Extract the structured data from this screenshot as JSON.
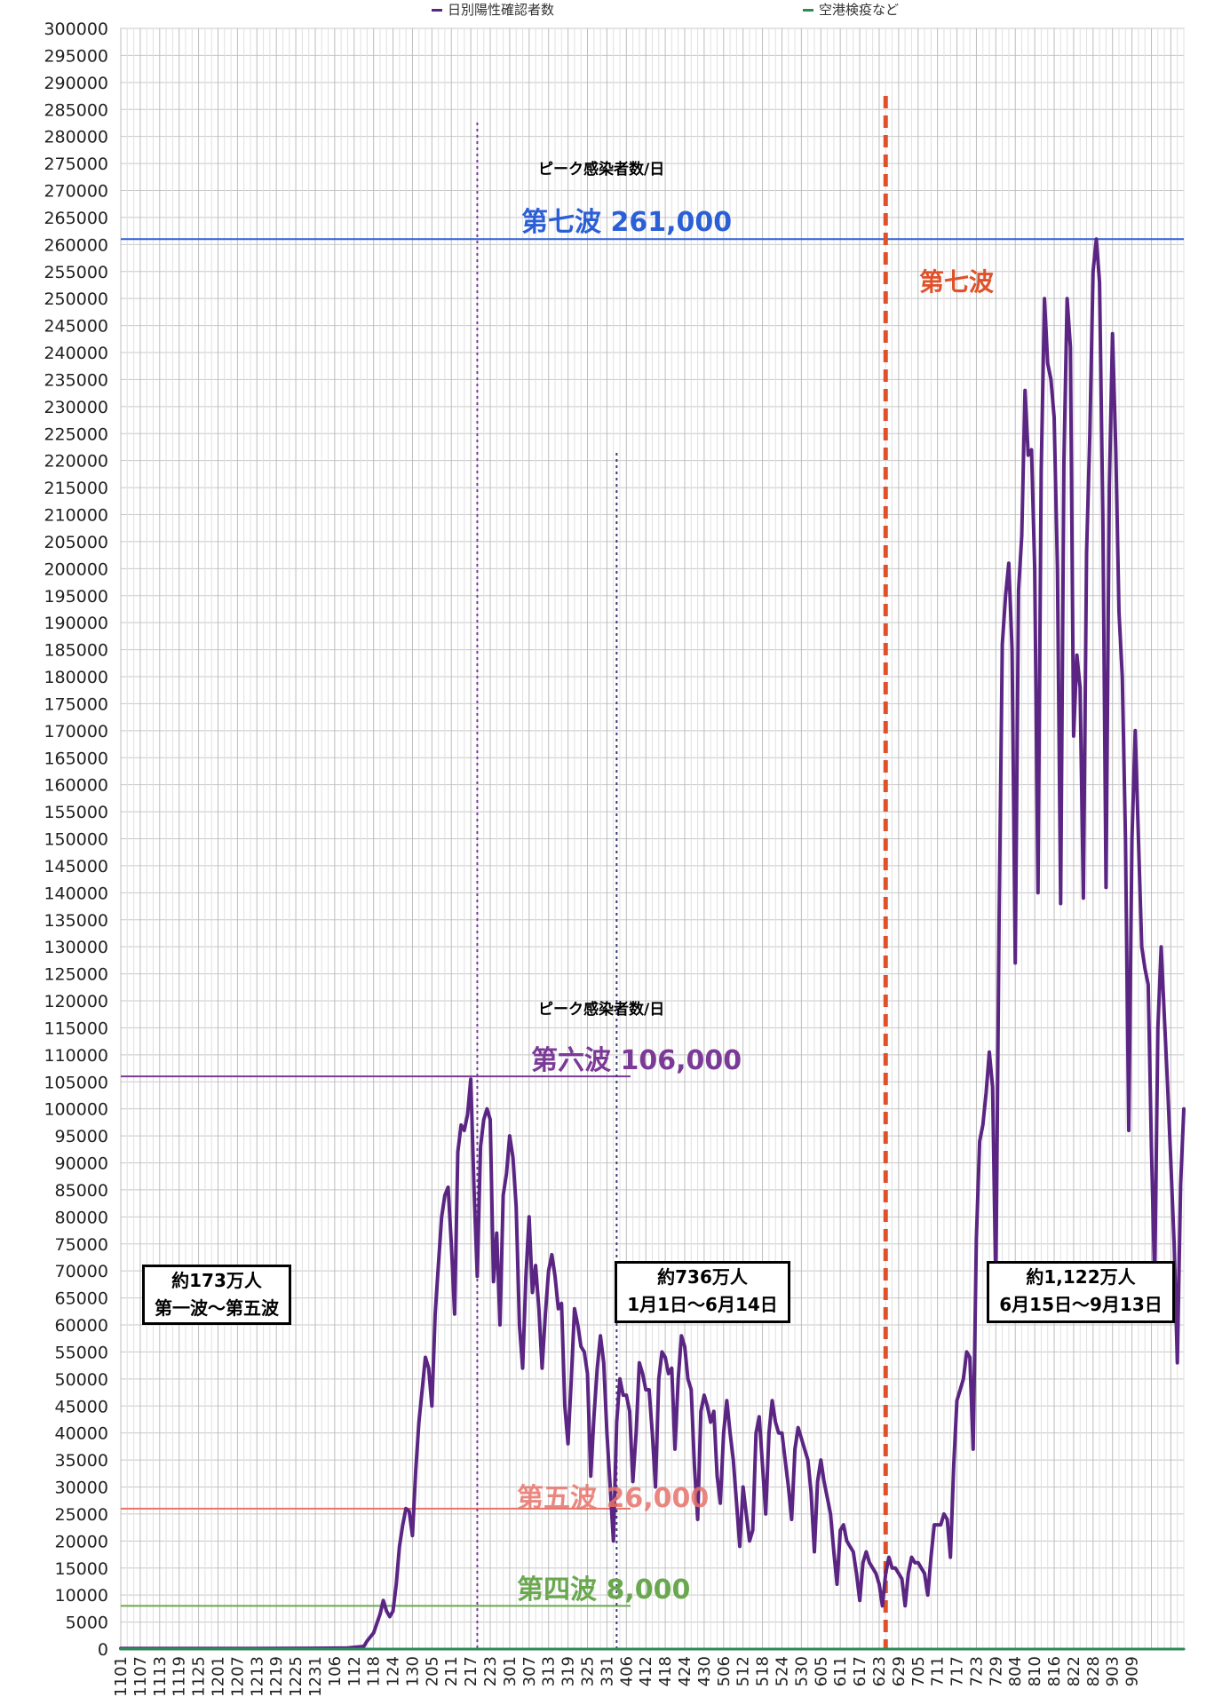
{
  "legend": [
    {
      "name": "日別陽性確認者数",
      "color": "#5b2583"
    },
    {
      "name": "空港検疫など",
      "color": "#2e8b57"
    }
  ],
  "annotations": {
    "peak_title_7": "ピーク感染者数/日",
    "peak_title_6": "ピーク感染者数/日",
    "wave7_peak": "第七波 261,000",
    "wave7_label": "第七波",
    "wave6_peak": "第六波 106,000",
    "wave5_peak": "第五波 26,000",
    "wave4_peak": "第四波 8,000",
    "box1_line1": "約173万人",
    "box1_line2": "第一波〜第五波",
    "box2_line1": "約736万人",
    "box2_line2": "1月1日〜6月14日",
    "box3_line1": "約1,122万人",
    "box3_line2": "6月15日〜9月13日"
  },
  "colors": {
    "series": "#5b2583",
    "quarantine": "#2e8b57",
    "wave7_line": "#2a5fd6",
    "wave6_line": "#7a3a96",
    "wave5_line": "#e8736a",
    "wave4_line": "#6aa84f",
    "divider": "#e0512a"
  },
  "chart_data": {
    "type": "line",
    "ylim": [
      0,
      300000
    ],
    "ytick_step": 5000,
    "x_tick_labels": [
      "1101",
      "1107",
      "1113",
      "1119",
      "1125",
      "1201",
      "1207",
      "1213",
      "1219",
      "1225",
      "1231",
      "106",
      "112",
      "118",
      "124",
      "130",
      "205",
      "211",
      "217",
      "223",
      "301",
      "307",
      "313",
      "319",
      "325",
      "331",
      "406",
      "412",
      "418",
      "424",
      "430",
      "506",
      "512",
      "518",
      "524",
      "530",
      "605",
      "611",
      "617",
      "623",
      "629",
      "705",
      "711",
      "717",
      "723",
      "729",
      "804",
      "810",
      "816",
      "822",
      "828",
      "903",
      "909"
    ],
    "reference_lines": [
      {
        "name": "第七波",
        "y": 261000
      },
      {
        "name": "第六波",
        "y": 106000
      },
      {
        "name": "第五波",
        "y": 26000
      },
      {
        "name": "第四波",
        "y": 8000
      }
    ],
    "series": [
      {
        "name": "日別陽性確認者数",
        "points": [
          [
            0,
            100
          ],
          [
            20,
            100
          ],
          [
            40,
            100
          ],
          [
            60,
            150
          ],
          [
            70,
            200
          ],
          [
            75,
            500
          ],
          [
            76,
            1500
          ],
          [
            78,
            3000
          ],
          [
            80,
            6500
          ],
          [
            81,
            9000
          ],
          [
            82,
            7000
          ],
          [
            83,
            6000
          ],
          [
            84,
            7000
          ],
          [
            85,
            12000
          ],
          [
            86,
            19000
          ],
          [
            87,
            23000
          ],
          [
            88,
            26000
          ],
          [
            89,
            25500
          ],
          [
            90,
            21000
          ],
          [
            91,
            33000
          ],
          [
            92,
            42000
          ],
          [
            93,
            48000
          ],
          [
            94,
            54000
          ],
          [
            95,
            52000
          ],
          [
            96,
            45000
          ],
          [
            97,
            62000
          ],
          [
            98,
            71000
          ],
          [
            99,
            80000
          ],
          [
            100,
            84000
          ],
          [
            101,
            85500
          ],
          [
            102,
            75000
          ],
          [
            103,
            62000
          ],
          [
            104,
            92000
          ],
          [
            105,
            97000
          ],
          [
            106,
            96000
          ],
          [
            107,
            99000
          ],
          [
            108,
            105500
          ],
          [
            109,
            85000
          ],
          [
            110,
            69000
          ],
          [
            111,
            93000
          ],
          [
            112,
            98000
          ],
          [
            113,
            100000
          ],
          [
            114,
            98000
          ],
          [
            115,
            68000
          ],
          [
            116,
            77000
          ],
          [
            117,
            60000
          ],
          [
            118,
            84000
          ],
          [
            119,
            88000
          ],
          [
            120,
            95000
          ],
          [
            121,
            91000
          ],
          [
            122,
            82000
          ],
          [
            123,
            60000
          ],
          [
            124,
            52000
          ],
          [
            125,
            69000
          ],
          [
            126,
            80000
          ],
          [
            127,
            66000
          ],
          [
            128,
            71000
          ],
          [
            129,
            63000
          ],
          [
            130,
            52000
          ],
          [
            131,
            62000
          ],
          [
            132,
            70000
          ],
          [
            133,
            73000
          ],
          [
            134,
            69000
          ],
          [
            135,
            63000
          ],
          [
            136,
            64000
          ],
          [
            137,
            45000
          ],
          [
            138,
            38000
          ],
          [
            139,
            50000
          ],
          [
            140,
            63000
          ],
          [
            141,
            60000
          ],
          [
            142,
            56000
          ],
          [
            143,
            55000
          ],
          [
            144,
            51000
          ],
          [
            145,
            32000
          ],
          [
            146,
            43000
          ],
          [
            147,
            52000
          ],
          [
            148,
            58000
          ],
          [
            149,
            53000
          ],
          [
            150,
            40000
          ],
          [
            151,
            30000
          ],
          [
            152,
            20000
          ],
          [
            153,
            42000
          ],
          [
            154,
            50000
          ],
          [
            155,
            47000
          ],
          [
            156,
            47000
          ],
          [
            157,
            44000
          ],
          [
            158,
            31000
          ],
          [
            159,
            40000
          ],
          [
            160,
            53000
          ],
          [
            161,
            51000
          ],
          [
            162,
            48000
          ],
          [
            163,
            48000
          ],
          [
            164,
            40000
          ],
          [
            165,
            30000
          ],
          [
            166,
            50000
          ],
          [
            167,
            55000
          ],
          [
            168,
            54000
          ],
          [
            169,
            51000
          ],
          [
            170,
            52000
          ],
          [
            171,
            37000
          ],
          [
            172,
            50000
          ],
          [
            173,
            58000
          ],
          [
            174,
            56000
          ],
          [
            175,
            50000
          ],
          [
            176,
            48000
          ],
          [
            177,
            34000
          ],
          [
            178,
            24000
          ],
          [
            179,
            44000
          ],
          [
            180,
            47000
          ],
          [
            181,
            45000
          ],
          [
            182,
            42000
          ],
          [
            183,
            44000
          ],
          [
            184,
            32000
          ],
          [
            185,
            27000
          ],
          [
            186,
            40000
          ],
          [
            187,
            46000
          ],
          [
            188,
            40000
          ],
          [
            189,
            35000
          ],
          [
            190,
            27000
          ],
          [
            191,
            19000
          ],
          [
            192,
            30000
          ],
          [
            193,
            25000
          ],
          [
            194,
            20000
          ],
          [
            195,
            22000
          ],
          [
            196,
            40000
          ],
          [
            197,
            43000
          ],
          [
            198,
            34000
          ],
          [
            199,
            25000
          ],
          [
            200,
            40000
          ],
          [
            201,
            46000
          ],
          [
            202,
            42000
          ],
          [
            203,
            40000
          ],
          [
            204,
            40000
          ],
          [
            205,
            35000
          ],
          [
            206,
            30000
          ],
          [
            207,
            24000
          ],
          [
            208,
            37000
          ],
          [
            209,
            41000
          ],
          [
            210,
            39000
          ],
          [
            211,
            37000
          ],
          [
            212,
            35000
          ],
          [
            213,
            29000
          ],
          [
            214,
            18000
          ],
          [
            215,
            31000
          ],
          [
            216,
            35000
          ],
          [
            217,
            31000
          ],
          [
            218,
            28000
          ],
          [
            219,
            25000
          ],
          [
            220,
            18000
          ],
          [
            221,
            12000
          ],
          [
            222,
            22000
          ],
          [
            223,
            23000
          ],
          [
            224,
            20000
          ],
          [
            225,
            19000
          ],
          [
            226,
            18000
          ],
          [
            227,
            14000
          ],
          [
            228,
            9000
          ],
          [
            229,
            16000
          ],
          [
            230,
            18000
          ],
          [
            231,
            16000
          ],
          [
            232,
            15000
          ],
          [
            233,
            14000
          ],
          [
            234,
            12000
          ],
          [
            235,
            8000
          ],
          [
            236,
            14000
          ],
          [
            237,
            17000
          ],
          [
            238,
            15000
          ],
          [
            239,
            15000
          ],
          [
            240,
            14000
          ],
          [
            241,
            13000
          ],
          [
            242,
            8000
          ],
          [
            243,
            14000
          ],
          [
            244,
            17000
          ],
          [
            245,
            16000
          ],
          [
            246,
            16000
          ],
          [
            247,
            15000
          ],
          [
            248,
            14000
          ],
          [
            249,
            10000
          ],
          [
            250,
            17000
          ],
          [
            251,
            23000
          ],
          [
            252,
            23000
          ],
          [
            253,
            23000
          ],
          [
            254,
            25000
          ],
          [
            255,
            24000
          ],
          [
            256,
            17000
          ],
          [
            257,
            34000
          ],
          [
            258,
            46000
          ],
          [
            259,
            48000
          ],
          [
            260,
            50000
          ],
          [
            261,
            55000
          ],
          [
            262,
            54000
          ],
          [
            263,
            37000
          ],
          [
            264,
            76000
          ],
          [
            265,
            94000
          ],
          [
            266,
            97000
          ],
          [
            267,
            103000
          ],
          [
            268,
            110500
          ],
          [
            269,
            104000
          ],
          [
            270,
            67000
          ],
          [
            271,
            135000
          ],
          [
            272,
            186000
          ],
          [
            273,
            195000
          ],
          [
            274,
            201000
          ],
          [
            275,
            185000
          ],
          [
            276,
            127000
          ],
          [
            277,
            196000
          ],
          [
            278,
            206000
          ],
          [
            279,
            233000
          ],
          [
            280,
            221000
          ],
          [
            281,
            222000
          ],
          [
            282,
            200000
          ],
          [
            283,
            140000
          ],
          [
            284,
            218000
          ],
          [
            285,
            250000
          ],
          [
            286,
            238000
          ],
          [
            287,
            235000
          ],
          [
            288,
            228000
          ],
          [
            289,
            200000
          ],
          [
            290,
            138000
          ],
          [
            291,
            220000
          ],
          [
            292,
            250000
          ],
          [
            293,
            241000
          ],
          [
            294,
            169000
          ],
          [
            295,
            184000
          ],
          [
            296,
            178000
          ],
          [
            297,
            139000
          ],
          [
            298,
            203000
          ],
          [
            299,
            225000
          ],
          [
            300,
            255000
          ],
          [
            301,
            261000
          ],
          [
            302,
            253000
          ],
          [
            303,
            210000
          ],
          [
            304,
            141000
          ],
          [
            305,
            215000
          ],
          [
            306,
            243500
          ],
          [
            307,
            222000
          ],
          [
            308,
            192000
          ],
          [
            309,
            180000
          ],
          [
            310,
            150000
          ],
          [
            311,
            96000
          ],
          [
            312,
            150000
          ],
          [
            313,
            170000
          ],
          [
            314,
            150000
          ],
          [
            315,
            130000
          ],
          [
            316,
            126000
          ],
          [
            317,
            123000
          ],
          [
            318,
            93000
          ],
          [
            319,
            68000
          ],
          [
            320,
            115000
          ],
          [
            321,
            130000
          ],
          [
            322,
            117000
          ],
          [
            323,
            104000
          ],
          [
            324,
            90000
          ],
          [
            325,
            75000
          ],
          [
            326,
            53000
          ],
          [
            327,
            86000
          ],
          [
            328,
            100000
          ]
        ]
      },
      {
        "name": "空港検疫など",
        "points": [
          [
            0,
            0
          ],
          [
            328,
            0
          ]
        ]
      }
    ]
  }
}
